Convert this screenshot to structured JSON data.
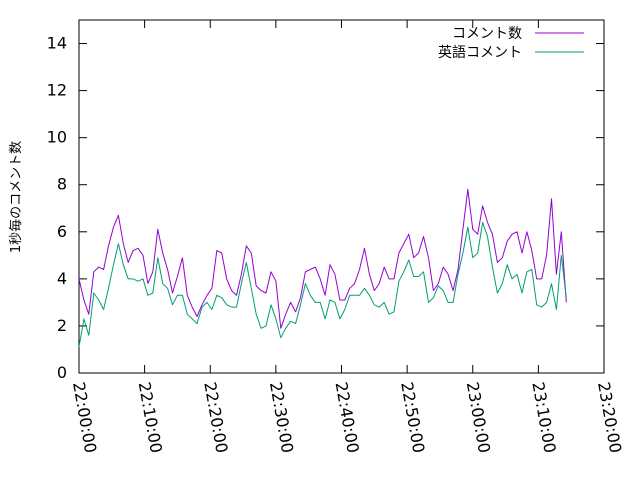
{
  "chart_data": {
    "type": "line",
    "title": "",
    "xlabel": "",
    "ylabel": "1秒毎のコメント数",
    "ylim": [
      0,
      15
    ],
    "yticks": [
      0,
      2,
      4,
      6,
      8,
      10,
      12,
      14
    ],
    "xlim": [
      "22:00:00",
      "23:20:00"
    ],
    "xticks": [
      "22:00:00",
      "22:10:00",
      "22:20:00",
      "22:30:00",
      "22:40:00",
      "22:50:00",
      "23:00:00",
      "23:10:00",
      "23:20:00"
    ],
    "grid": false,
    "legend": "top-right",
    "x": [
      "22:00:00",
      "22:00:45",
      "22:01:30",
      "22:02:15",
      "22:03:00",
      "22:03:45",
      "22:04:30",
      "22:05:15",
      "22:06:00",
      "22:06:45",
      "22:07:30",
      "22:08:15",
      "22:09:00",
      "22:09:45",
      "22:10:30",
      "22:11:15",
      "22:12:00",
      "22:12:45",
      "22:13:30",
      "22:14:15",
      "22:15:00",
      "22:15:45",
      "22:16:30",
      "22:17:15",
      "22:18:00",
      "22:18:45",
      "22:19:30",
      "22:20:15",
      "22:21:00",
      "22:21:45",
      "22:22:30",
      "22:23:15",
      "22:24:00",
      "22:24:45",
      "22:25:30",
      "22:26:15",
      "22:27:00",
      "22:27:45",
      "22:28:30",
      "22:29:15",
      "22:30:00",
      "22:30:45",
      "22:31:30",
      "22:32:15",
      "22:33:00",
      "22:33:45",
      "22:34:30",
      "22:35:15",
      "22:36:00",
      "22:36:45",
      "22:37:30",
      "22:38:15",
      "22:39:00",
      "22:39:45",
      "22:40:30",
      "22:41:15",
      "22:42:00",
      "22:42:45",
      "22:43:30",
      "22:44:15",
      "22:45:00",
      "22:45:45",
      "22:46:30",
      "22:47:15",
      "22:48:00",
      "22:48:45",
      "22:49:30",
      "22:50:15",
      "22:51:00",
      "22:51:45",
      "22:52:30",
      "22:53:15",
      "22:54:00",
      "22:54:45",
      "22:55:30",
      "22:56:15",
      "22:57:00",
      "22:57:45",
      "22:58:30",
      "22:59:15",
      "23:00:00",
      "23:00:45",
      "23:01:30",
      "23:02:15",
      "23:03:00",
      "23:03:45",
      "23:04:30",
      "23:05:15",
      "23:06:00",
      "23:06:45",
      "23:07:30",
      "23:08:15",
      "23:09:00",
      "23:09:45",
      "23:10:30",
      "23:11:15",
      "23:12:00",
      "23:12:45",
      "23:13:30",
      "23:14:15"
    ],
    "series": [
      {
        "name": "コメント数",
        "color": "#9400d3",
        "values": [
          4.0,
          3.1,
          2.5,
          4.3,
          4.5,
          4.4,
          5.4,
          6.2,
          6.7,
          5.5,
          4.7,
          5.2,
          5.3,
          5.0,
          3.8,
          4.3,
          6.1,
          5.1,
          4.4,
          3.4,
          4.1,
          4.9,
          3.3,
          2.8,
          2.4,
          2.9,
          3.3,
          3.6,
          5.2,
          5.1,
          4.0,
          3.5,
          3.3,
          4.2,
          5.4,
          5.1,
          3.7,
          3.5,
          3.4,
          4.3,
          3.9,
          1.9,
          2.5,
          3.0,
          2.6,
          3.2,
          4.3,
          4.4,
          4.5,
          4.0,
          3.3,
          4.6,
          4.2,
          3.1,
          3.1,
          3.6,
          3.8,
          4.4,
          5.3,
          4.2,
          3.5,
          3.8,
          4.5,
          4.0,
          4.0,
          5.1,
          5.5,
          5.9,
          4.9,
          5.1,
          5.8,
          4.9,
          3.5,
          3.8,
          4.5,
          4.2,
          3.5,
          4.4,
          6.1,
          7.8,
          6.1,
          5.9,
          7.1,
          6.4,
          5.9,
          4.7,
          4.9,
          5.6,
          5.9,
          6.0,
          5.1,
          6.0,
          5.2,
          4.0,
          4.0,
          5.0,
          7.4,
          4.2,
          6.0,
          3.0
        ]
      },
      {
        "name": "英語コメント",
        "color": "#009e73",
        "values": [
          1.1,
          2.3,
          1.6,
          3.4,
          3.1,
          2.7,
          3.6,
          4.6,
          5.5,
          4.6,
          4.0,
          4.0,
          3.9,
          4.0,
          3.3,
          3.4,
          4.9,
          3.8,
          3.6,
          2.9,
          3.3,
          3.3,
          2.5,
          2.3,
          2.1,
          2.8,
          3.0,
          2.7,
          3.3,
          3.2,
          2.9,
          2.8,
          2.8,
          3.8,
          4.7,
          3.6,
          2.5,
          1.9,
          2.0,
          2.9,
          2.3,
          1.5,
          1.9,
          2.2,
          2.1,
          2.9,
          3.8,
          3.3,
          3.0,
          3.0,
          2.3,
          3.1,
          3.0,
          2.3,
          2.7,
          3.3,
          3.3,
          3.3,
          3.6,
          3.3,
          2.9,
          2.8,
          3.0,
          2.5,
          2.6,
          3.9,
          4.3,
          4.8,
          4.1,
          4.1,
          4.3,
          3.0,
          3.2,
          3.7,
          3.5,
          3.0,
          3.0,
          4.2,
          5.1,
          6.2,
          4.9,
          5.1,
          6.4,
          5.8,
          4.5,
          3.4,
          3.8,
          4.6,
          4.0,
          4.2,
          3.4,
          4.3,
          4.4,
          2.9,
          2.8,
          3.0,
          3.8,
          2.7,
          5.0,
          3.2
        ]
      }
    ]
  }
}
